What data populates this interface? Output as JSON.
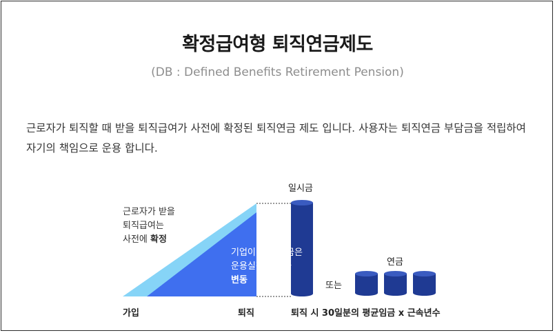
{
  "header": {
    "title": "확정급여형 퇴직연금제도",
    "subtitle": "(DB : Defined Benefits Retirement Pension)"
  },
  "description": "근로자가 퇴직할 때 받을 퇴직급여가 사전에 확정된 퇴직연금 제도 입니다. 사용자는 퇴직연금 부담금을 적립하여 자기의 책임으로 운용 합니다.",
  "diagram": {
    "employee_note": {
      "line1": "근로자가 받을",
      "line2": "퇴직급여는",
      "line3_prefix": "사전에 ",
      "line3_bold": "확정"
    },
    "employer_note": {
      "line1": "기업이 낼 부담금은",
      "line2": "운용실적에 따라",
      "line3_bold": "변동"
    },
    "label_join": "가입",
    "label_retire": "퇴직",
    "label_lump_sum": "일시금",
    "label_or": "또는",
    "label_pension": "연금",
    "formula": "퇴직 시 30일분의 평균임금 x 근속년수",
    "colors": {
      "light_blue": "#86D4F7",
      "mid_blue": "#3F6FEF",
      "dark_navy": "#1F3A93"
    },
    "icons": [
      "lump-sum-cylinder-icon",
      "pension-cylinder-icon"
    ]
  }
}
